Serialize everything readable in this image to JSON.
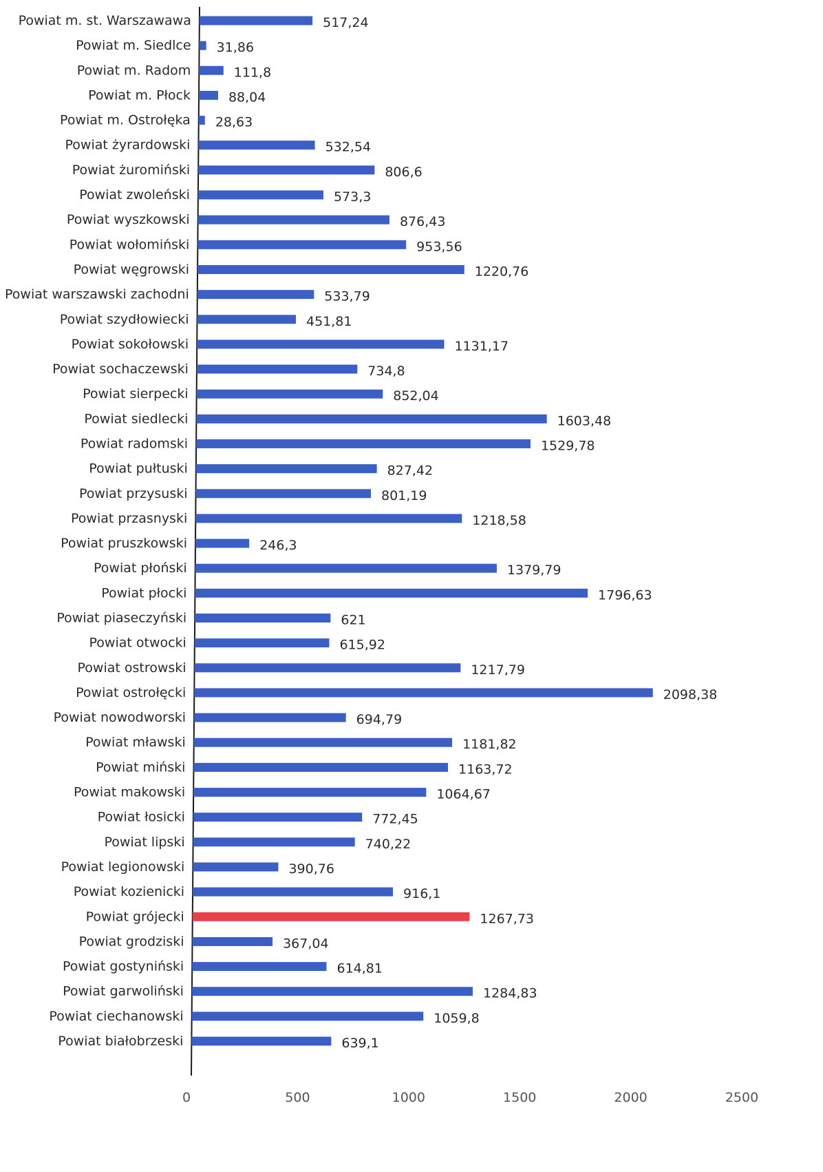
{
  "chart_data": {
    "type": "bar",
    "orientation": "horizontal",
    "title": "",
    "xlabel": "",
    "ylabel": "",
    "xlim": [
      0,
      2500
    ],
    "x_ticks": [
      "0",
      "500",
      "1000",
      "1500",
      "2000",
      "2500"
    ],
    "grid": false,
    "legend": "none",
    "colors": {
      "default": "#3b5fc4",
      "highlight": "#e8414b"
    },
    "highlight_category": "Powiat grójecki",
    "categories": [
      "Powiat m. st. Warszawawa",
      "Powiat m. Siedlce",
      "Powiat m. Radom",
      "Powiat m. Płock",
      "Powiat m. Ostrołęka",
      "Powiat żyrardowski",
      "Powiat żuromiński",
      "Powiat zwoleński",
      "Powiat wyszkowski",
      "Powiat wołomiński",
      "Powiat węgrowski",
      "Powiat warszawski zachodni",
      "Powiat szydłowiecki",
      "Powiat sokołowski",
      "Powiat sochaczewski",
      "Powiat sierpecki",
      "Powiat siedlecki",
      "Powiat radomski",
      "Powiat pułtuski",
      "Powiat przysuski",
      "Powiat przasnyski",
      "Powiat pruszkowski",
      "Powiat płoński",
      "Powiat płocki",
      "Powiat piaseczyński",
      "Powiat otwocki",
      "Powiat ostrowski",
      "Powiat ostrołęcki",
      "Powiat nowodworski",
      "Powiat mławski",
      "Powiat miński",
      "Powiat makowski",
      "Powiat łosicki",
      "Powiat lipski",
      "Powiat legionowski",
      "Powiat kozienicki",
      "Powiat grójecki",
      "Powiat grodziski",
      "Powiat gostyniński",
      "Powiat garwoliński",
      "Powiat ciechanowski",
      "Powiat białobrzeski"
    ],
    "values": [
      517.24,
      31.86,
      111.8,
      88.04,
      28.63,
      532.54,
      806.6,
      573.3,
      876.43,
      953.56,
      1220.76,
      533.79,
      451.81,
      1131.17,
      734.8,
      852.04,
      1603.48,
      1529.78,
      827.42,
      801.19,
      1218.58,
      246.3,
      1379.79,
      1796.63,
      621,
      615.92,
      1217.79,
      2098.38,
      694.79,
      1181.82,
      1163.72,
      1064.67,
      772.45,
      740.22,
      390.76,
      916.1,
      1267.73,
      367.04,
      614.81,
      1284.83,
      1059.8,
      639.1
    ],
    "value_labels": [
      "517,24",
      "31,86",
      "111,8",
      "88,04",
      "28,63",
      "532,54",
      "806,6",
      "573,3",
      "876,43",
      "953,56",
      "1220,76",
      "533,79",
      "451,81",
      "1131,17",
      "734,8",
      "852,04",
      "1603,48",
      "1529,78",
      "827,42",
      "801,19",
      "1218,58",
      "246,3",
      "1379,79",
      "1796,63",
      "621",
      "615,92",
      "1217,79",
      "2098,38",
      "694,79",
      "1181,82",
      "1163,72",
      "1064,67",
      "772,45",
      "740,22",
      "390,76",
      "916,1",
      "1267,73",
      "367,04",
      "614,81",
      "1284,83",
      "1059,8",
      "639,1"
    ]
  }
}
